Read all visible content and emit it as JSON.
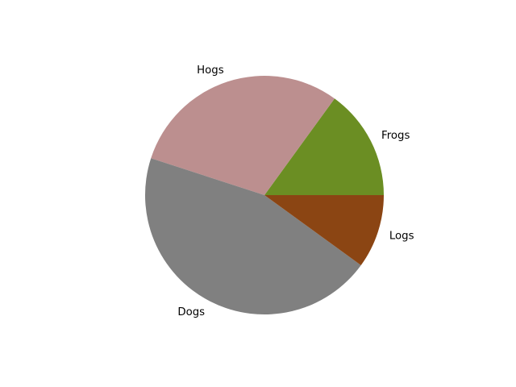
{
  "chart_data": {
    "type": "pie",
    "title": "",
    "categories": [
      "Frogs",
      "Hogs",
      "Dogs",
      "Logs"
    ],
    "values": [
      15,
      30,
      45,
      10
    ],
    "colors": [
      "olivedrab",
      "rosybrown",
      "gray",
      "saddlebrown"
    ],
    "start_angle_degrees": 0,
    "direction": "counterclockwise",
    "labels_outside": true
  }
}
